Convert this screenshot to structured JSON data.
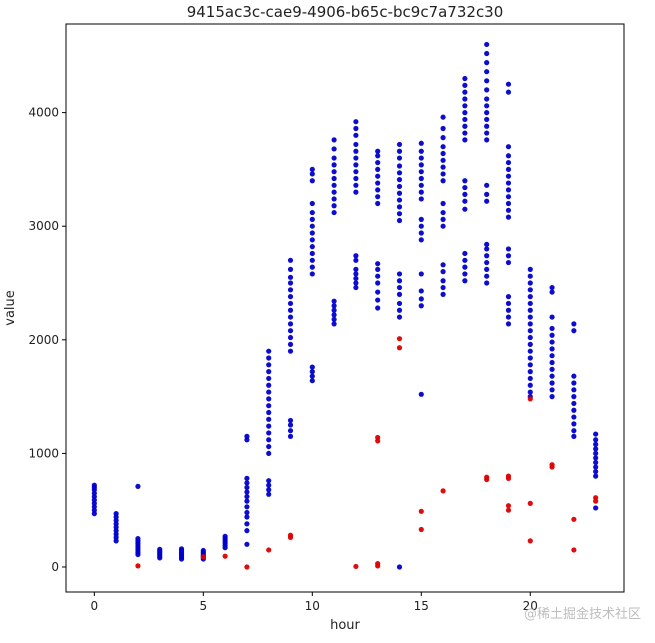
{
  "chart_data": {
    "type": "scatter",
    "title": "9415ac3c-cae9-4906-b65c-bc9c7a732c30",
    "xlabel": "hour",
    "ylabel": "value",
    "xlim": [
      -1.3,
      24.3
    ],
    "ylim": [
      -220,
      4780
    ],
    "xticks": [
      0,
      5,
      10,
      15,
      20
    ],
    "yticks": [
      0,
      1000,
      2000,
      3000,
      4000
    ],
    "grid": false,
    "series": [
      {
        "color": "#0000cc",
        "points_by_hour": [
          {
            "x": 0,
            "y": [
              470,
              500,
              530,
              560,
              590,
              620,
              650,
              680,
              700,
              720
            ]
          },
          {
            "x": 1,
            "y": [
              230,
              260,
              290,
              320,
              350,
              380,
              410,
              440,
              470
            ]
          },
          {
            "x": 2,
            "y": [
              110,
              130,
              150,
              170,
              190,
              210,
              230,
              250,
              710
            ]
          },
          {
            "x": 3,
            "y": [
              80,
              95,
              110,
              125,
              140,
              155
            ]
          },
          {
            "x": 4,
            "y": [
              70,
              85,
              100,
              115,
              130,
              145,
              160
            ]
          },
          {
            "x": 5,
            "y": [
              70,
              85,
              100,
              115,
              130,
              145
            ]
          },
          {
            "x": 6,
            "y": [
              170,
              190,
              210,
              230,
              250,
              270
            ]
          },
          {
            "x": 7,
            "y": [
              200,
              320,
              380,
              440,
              480,
              530,
              580,
              620,
              660,
              700,
              740,
              780,
              1120,
              1150
            ]
          },
          {
            "x": 8,
            "y": [
              640,
              680,
              720,
              760,
              1000,
              1060,
              1120,
              1180,
              1240,
              1300,
              1360,
              1420,
              1480,
              1540,
              1600,
              1660,
              1720,
              1780,
              1840,
              1900
            ]
          },
          {
            "x": 9,
            "y": [
              1150,
              1200,
              1250,
              1290,
              1900,
              1960,
              2020,
              2080,
              2140,
              2200,
              2260,
              2320,
              2380,
              2440,
              2500,
              2550,
              2620,
              2700
            ]
          },
          {
            "x": 10,
            "y": [
              1640,
              1680,
              1720,
              1760,
              2580,
              2640,
              2700,
              2760,
              2820,
              2880,
              2940,
              3000,
              3060,
              3120,
              3200,
              3400,
              3460,
              3500
            ]
          },
          {
            "x": 11,
            "y": [
              2140,
              2180,
              2220,
              2260,
              2300,
              2340,
              3120,
              3180,
              3240,
              3300,
              3360,
              3420,
              3480,
              3540,
              3600,
              3680,
              3760
            ]
          },
          {
            "x": 12,
            "y": [
              2460,
              2500,
              2540,
              2580,
              2620,
              2700,
              2740,
              3300,
              3360,
              3420,
              3480,
              3540,
              3600,
              3660,
              3720,
              3800,
              3860,
              3920
            ]
          },
          {
            "x": 13,
            "y": [
              2280,
              2350,
              2420,
              2500,
              2560,
              2620,
              2670,
              3200,
              3260,
              3320,
              3380,
              3440,
              3500,
              3560,
              3620,
              3660
            ]
          },
          {
            "x": 14,
            "y": [
              0,
              2200,
              2260,
              2320,
              2400,
              2460,
              2520,
              2580,
              3050,
              3110,
              3170,
              3230,
              3290,
              3350,
              3410,
              3470,
              3530,
              3600,
              3660,
              3720
            ]
          },
          {
            "x": 15,
            "y": [
              1520,
              2300,
              2360,
              2430,
              2580,
              2880,
              2940,
              3000,
              3060,
              3240,
              3300,
              3360,
              3420,
              3480,
              3540,
              3600,
              3660,
              3730
            ]
          },
          {
            "x": 16,
            "y": [
              2400,
              2460,
              2520,
              2600,
              2660,
              3000,
              3060,
              3120,
              3200,
              3400,
              3460,
              3520,
              3580,
              3640,
              3700,
              3780,
              3860,
              3960
            ]
          },
          {
            "x": 17,
            "y": [
              2520,
              2580,
              2640,
              2700,
              2760,
              3150,
              3220,
              3280,
              3340,
              3400,
              3760,
              3820,
              3880,
              3940,
              4000,
              4060,
              4120,
              4180,
              4240,
              4300
            ]
          },
          {
            "x": 18,
            "y": [
              2500,
              2560,
              2620,
              2680,
              2740,
              2800,
              2840,
              3220,
              3280,
              3360,
              3760,
              3820,
              3880,
              3940,
              4000,
              4060,
              4120,
              4200,
              4280,
              4360,
              4440,
              4520,
              4600
            ]
          },
          {
            "x": 19,
            "y": [
              2140,
              2200,
              2260,
              2320,
              2380,
              2680,
              2740,
              2800,
              3080,
              3140,
              3200,
              3260,
              3320,
              3380,
              3440,
              3500,
              3560,
              3620,
              3700,
              4180,
              4250
            ]
          },
          {
            "x": 20,
            "y": [
              1500,
              1540,
              1600,
              1660,
              1720,
              1780,
              1840,
              1900,
              1960,
              2020,
              2080,
              2140,
              2200,
              2260,
              2320,
              2380,
              2440,
              2500,
              2560,
              2620
            ]
          },
          {
            "x": 21,
            "y": [
              1500,
              1560,
              1620,
              1680,
              1740,
              1800,
              1860,
              1920,
              1980,
              2040,
              2100,
              2200,
              2420,
              2460
            ]
          },
          {
            "x": 22,
            "y": [
              1150,
              1200,
              1260,
              1320,
              1380,
              1440,
              1500,
              1560,
              1620,
              1680,
              2080,
              2140
            ]
          },
          {
            "x": 23,
            "y": [
              520,
              800,
              840,
              880,
              920,
              960,
              1000,
              1040,
              1080,
              1120,
              1170
            ]
          }
        ]
      },
      {
        "color": "#dd0000",
        "points": [
          [
            2,
            10
          ],
          [
            5,
            90
          ],
          [
            6,
            95
          ],
          [
            7,
            0
          ],
          [
            8,
            150
          ],
          [
            9,
            260
          ],
          [
            9,
            280
          ],
          [
            12,
            5
          ],
          [
            13,
            10
          ],
          [
            13,
            30
          ],
          [
            13,
            1110
          ],
          [
            13,
            1140
          ],
          [
            14,
            1930
          ],
          [
            14,
            2010
          ],
          [
            15,
            330
          ],
          [
            15,
            490
          ],
          [
            16,
            670
          ],
          [
            18,
            770
          ],
          [
            18,
            790
          ],
          [
            19,
            500
          ],
          [
            19,
            540
          ],
          [
            19,
            780
          ],
          [
            19,
            800
          ],
          [
            20,
            230
          ],
          [
            20,
            560
          ],
          [
            20,
            1480
          ],
          [
            21,
            880
          ],
          [
            21,
            900
          ],
          [
            22,
            150
          ],
          [
            22,
            420
          ],
          [
            23,
            580
          ],
          [
            23,
            610
          ]
        ]
      }
    ]
  },
  "watermark": "@稀土掘金技术社区"
}
